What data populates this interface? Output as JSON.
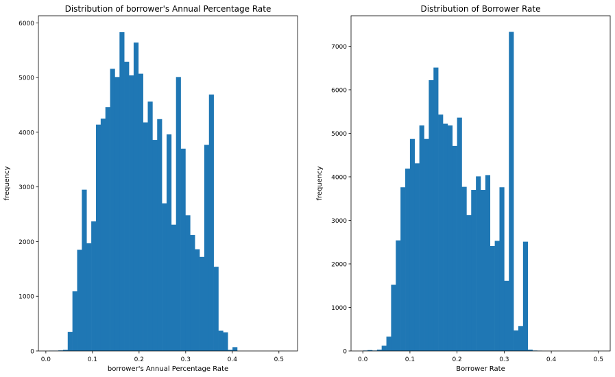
{
  "chart_data": [
    {
      "type": "bar",
      "title": "Distribution of borrower's Annual Percentage Rate",
      "xlabel": "borrower's Annual Percentage Rate",
      "ylabel": "frequency",
      "xlim": [
        -0.016,
        0.54
      ],
      "ylim": [
        0,
        6130
      ],
      "xticks": [
        0.0,
        0.1,
        0.2,
        0.3,
        0.4,
        0.5
      ],
      "xtick_labels": [
        "0.0",
        "0.1",
        "0.2",
        "0.3",
        "0.4",
        "0.5"
      ],
      "yticks": [
        0,
        1000,
        2000,
        3000,
        4000,
        5000,
        6000
      ],
      "ytick_labels": [
        "0",
        "1000",
        "2000",
        "3000",
        "4000",
        "5000",
        "6000"
      ],
      "bin_edges": [
        0.00653,
        0.01663,
        0.02672,
        0.03682,
        0.04692,
        0.05702,
        0.06712,
        0.07722,
        0.08732,
        0.09742,
        0.10752,
        0.11762,
        0.12772,
        0.13782,
        0.14792,
        0.15802,
        0.16812,
        0.17822,
        0.18832,
        0.19842,
        0.20852,
        0.21862,
        0.22872,
        0.23882,
        0.24892,
        0.25902,
        0.26912,
        0.27922,
        0.28932,
        0.29942,
        0.30952,
        0.31962,
        0.32972,
        0.33982,
        0.34992,
        0.36002,
        0.37012,
        0.38022,
        0.39032,
        0.40042,
        0.41052,
        0.42062,
        0.43072,
        0.44082,
        0.45092,
        0.46102,
        0.47112,
        0.48122,
        0.49132,
        0.50142,
        0.51152
      ],
      "values": [
        5,
        5,
        10,
        20,
        350,
        1090,
        1850,
        2950,
        1970,
        2370,
        4140,
        4250,
        4460,
        5160,
        5010,
        5830,
        5290,
        5040,
        5640,
        5070,
        4180,
        4560,
        3860,
        4240,
        2700,
        3960,
        2310,
        5010,
        3700,
        2480,
        2120,
        1860,
        1720,
        3770,
        4690,
        1540,
        370,
        340,
        20,
        70,
        0,
        0,
        0,
        0,
        0,
        0,
        0,
        0,
        0,
        1
      ],
      "color": "#1f77b4"
    },
    {
      "type": "bar",
      "title": "Distribution of Borrower Rate",
      "xlabel": "Borrower Rate",
      "ylabel": "frequency",
      "xlim": [
        -0.025,
        0.525
      ],
      "ylim": [
        0,
        7700
      ],
      "xticks": [
        0.0,
        0.1,
        0.2,
        0.3,
        0.4,
        0.5
      ],
      "xtick_labels": [
        "0.0",
        "0.1",
        "0.2",
        "0.3",
        "0.4",
        "0.5"
      ],
      "yticks": [
        0,
        1000,
        2000,
        3000,
        4000,
        5000,
        6000,
        7000
      ],
      "ytick_labels": [
        "0",
        "1000",
        "2000",
        "3000",
        "4000",
        "5000",
        "6000",
        "7000"
      ],
      "bin_edges": [
        0.0,
        0.01,
        0.02,
        0.03,
        0.04,
        0.05,
        0.06,
        0.07,
        0.08,
        0.09,
        0.1,
        0.11,
        0.12,
        0.13,
        0.14,
        0.15,
        0.16,
        0.17,
        0.18,
        0.19,
        0.2,
        0.21,
        0.22,
        0.23,
        0.24,
        0.25,
        0.26,
        0.27,
        0.28,
        0.29,
        0.3,
        0.31,
        0.32,
        0.33,
        0.34,
        0.35,
        0.36,
        0.37,
        0.38,
        0.39,
        0.4,
        0.41,
        0.42,
        0.43,
        0.44,
        0.45,
        0.46,
        0.47,
        0.48,
        0.49,
        0.5
      ],
      "values": [
        10,
        20,
        10,
        30,
        120,
        330,
        1520,
        2540,
        3760,
        4190,
        4870,
        4310,
        5180,
        4870,
        6220,
        6510,
        5430,
        5220,
        5180,
        4710,
        5360,
        3770,
        3120,
        3700,
        4010,
        3700,
        4040,
        2410,
        2530,
        3760,
        1610,
        7330,
        470,
        570,
        2510,
        30,
        10,
        5,
        0,
        0,
        0,
        0,
        0,
        0,
        0,
        0,
        0,
        0,
        0,
        5
      ],
      "color": "#1f77b4"
    }
  ]
}
